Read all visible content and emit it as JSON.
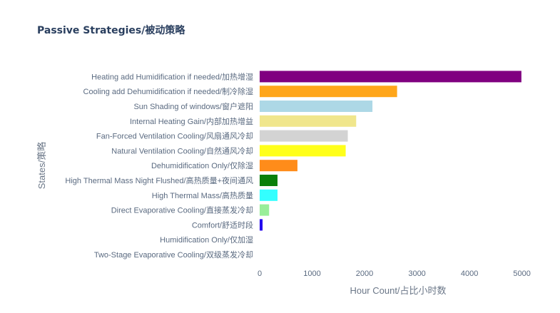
{
  "chart_data": {
    "type": "bar",
    "orientation": "horizontal",
    "title": "Passive Strategies/被动策略",
    "xlabel": "Hour Count/占比小时数",
    "ylabel": "States/策略",
    "xlim": [
      0,
      5250
    ],
    "xticks": [
      0,
      1000,
      2000,
      3000,
      4000,
      5000
    ],
    "grid": false,
    "legend": "none",
    "categories": [
      "Heating add Humidification if needed/加热增湿",
      "Cooling add Dehumidification if needed/制冷除湿",
      "Sun Shading of windows/窗户遮阳",
      "Internal Heating Gain/内部加热增益",
      "Fan-Forced Ventilation Cooling/风扇通风冷却",
      "Natural Ventilation Cooling/自然通风冷却",
      "Dehumidification Only/仅除湿",
      "High Thermal Mass Night Flushed/高热质量+夜间通风",
      "High Thermal Mass/高热质量",
      "Direct Evaporative Cooling/直接蒸发冷却",
      "Comfort/舒适时段",
      "Humidification Only/仅加湿",
      "Two-Stage Evaporative Cooling/双级蒸发冷却"
    ],
    "values": [
      4990,
      2620,
      2150,
      1840,
      1680,
      1640,
      720,
      340,
      340,
      180,
      55,
      0,
      0
    ],
    "colors": [
      "#800080",
      "#ffa61a",
      "#add8e6",
      "#f0e68c",
      "#d3d3d3",
      "#ffff1a",
      "#ff8c1a",
      "#0a800a",
      "#33ffff",
      "#99ee99",
      "#2200ee",
      "#cccccc",
      "#cccccc"
    ]
  }
}
